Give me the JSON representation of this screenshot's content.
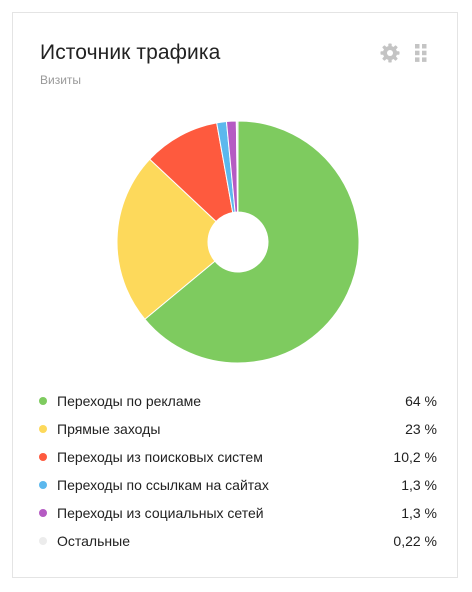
{
  "widget": {
    "title": "Источник трафика",
    "subtitle": "Визиты",
    "settings_icon": "gear-icon",
    "drag_icon": "drag-handle-icon"
  },
  "chart_data": {
    "type": "pie",
    "donut": true,
    "categories": [
      "Переходы по рекламе",
      "Прямые заходы",
      "Переходы из поисковых систем",
      "Переходы по ссылкам на сайтах",
      "Переходы из социальных сетей",
      "Остальные"
    ],
    "values": [
      64,
      23,
      10.2,
      1.3,
      1.3,
      0.22
    ],
    "value_labels": [
      "64 %",
      "23 %",
      "10,2 %",
      "1,3 %",
      "1,3 %",
      "0,22 %"
    ],
    "colors": [
      "#7ecb5f",
      "#fdd95b",
      "#fe5a3e",
      "#5cb8ed",
      "#b55bc3",
      "#ececec"
    ],
    "legend": "bottom"
  }
}
